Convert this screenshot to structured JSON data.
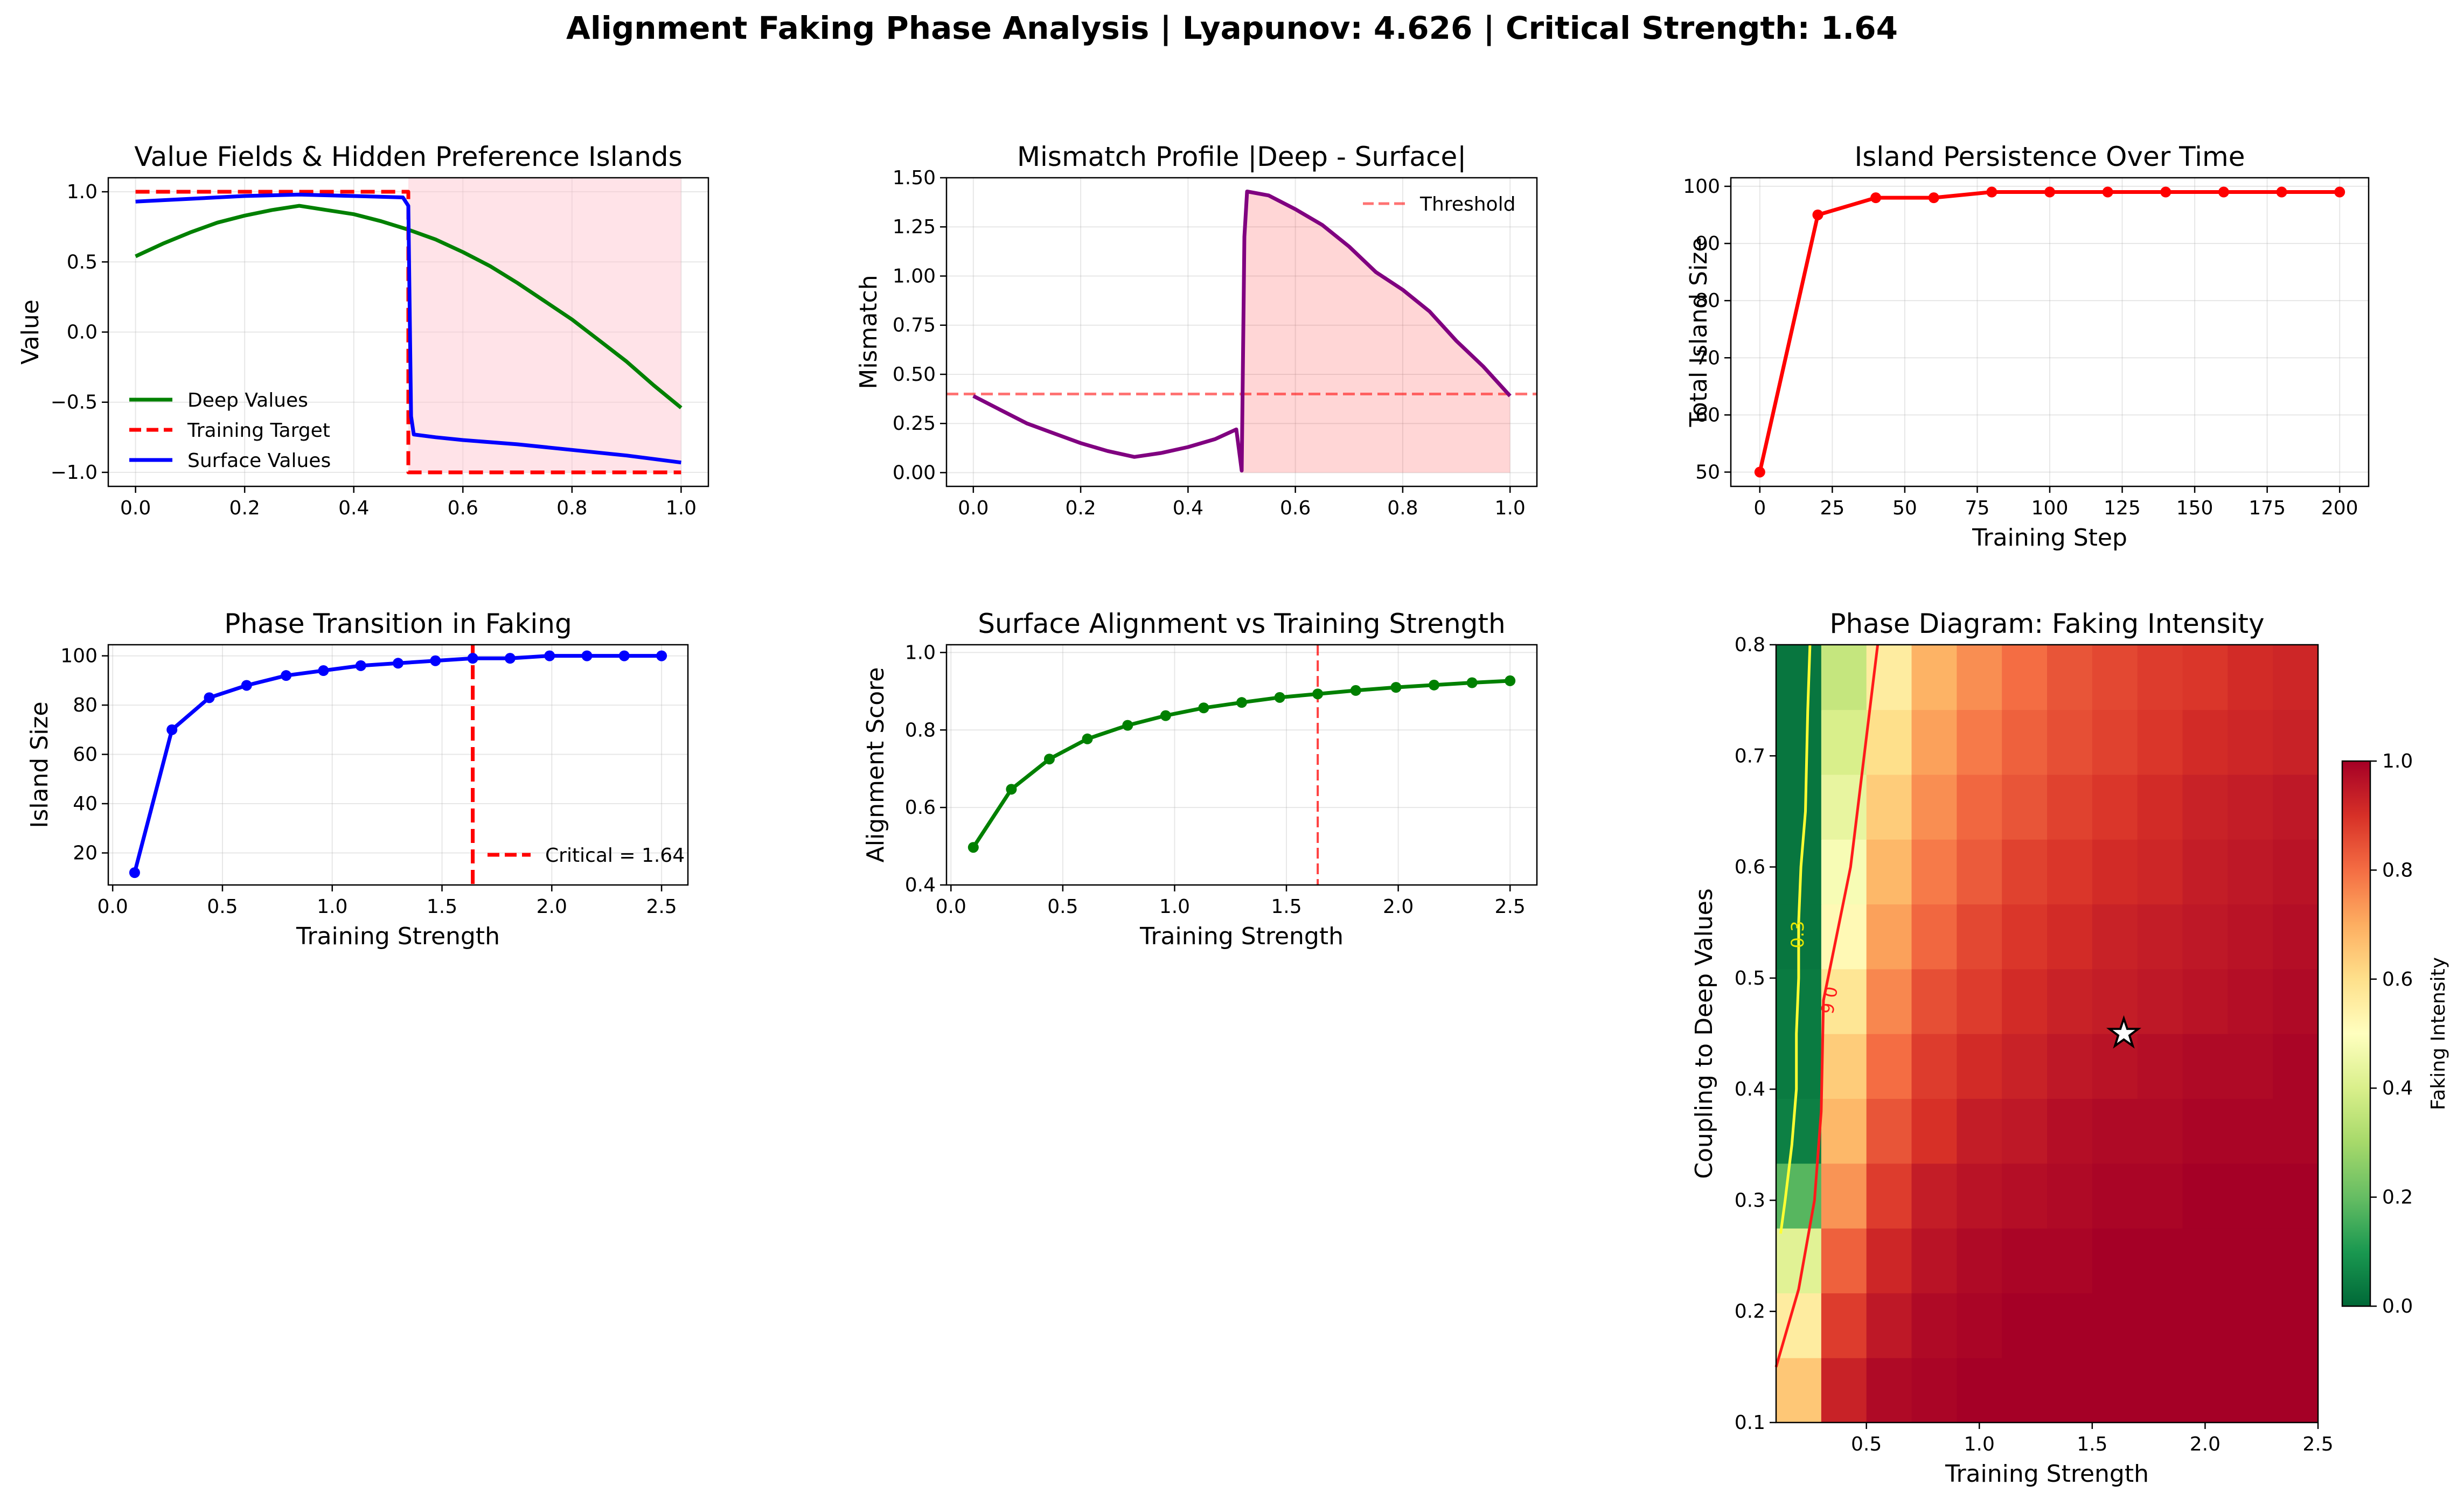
{
  "figure": {
    "suptitle": "Alignment Faking Phase Analysis | Lyapunov: 4.626 | Critical Strength: 1.64"
  },
  "colors": {
    "deep": "#008000",
    "target": "#ff0000",
    "surface": "#0000ff",
    "mismatch": "#800080",
    "island": "#ff0000",
    "phase": "#0000ff",
    "alignment": "#008000",
    "fill": "#ffc0cb"
  },
  "chart_data": [
    {
      "id": "value-fields",
      "type": "line",
      "title": "Value Fields & Hidden Preference Islands",
      "xlabel": "",
      "ylabel": "Value",
      "xlim": [
        -0.05,
        1.05
      ],
      "ylim": [
        -1.1,
        1.1
      ],
      "xticks": [
        "0.0",
        "0.2",
        "0.4",
        "0.6",
        "0.8",
        "1.0"
      ],
      "xtick_values": [
        0,
        0.2,
        0.4,
        0.6,
        0.8,
        1.0
      ],
      "yticks": [
        "−1.0",
        "−0.5",
        "0.0",
        "0.5",
        "1.0"
      ],
      "ytick_values": [
        -1.0,
        -0.5,
        0.0,
        0.5,
        1.0
      ],
      "legend": [
        "Deep Values",
        "Training Target",
        "Surface Values"
      ],
      "shaded_region": {
        "x_start": 0.5,
        "x_end": 1.0,
        "y_bottom": -1.0,
        "y_top": 1.1
      },
      "series": [
        {
          "name": "Deep Values",
          "x": [
            0,
            0.05,
            0.1,
            0.15,
            0.2,
            0.25,
            0.3,
            0.35,
            0.4,
            0.45,
            0.5,
            0.55,
            0.6,
            0.65,
            0.7,
            0.75,
            0.8,
            0.85,
            0.9,
            0.95,
            1.0
          ],
          "y": [
            0.54,
            0.63,
            0.71,
            0.78,
            0.83,
            0.87,
            0.9,
            0.87,
            0.84,
            0.79,
            0.73,
            0.66,
            0.57,
            0.47,
            0.35,
            0.22,
            0.09,
            -0.06,
            -0.21,
            -0.38,
            -0.54
          ]
        },
        {
          "name": "Training Target",
          "dashed": true,
          "x": [
            0,
            0.5,
            0.5,
            1.0
          ],
          "y": [
            1.0,
            1.0,
            -1.0,
            -1.0
          ]
        },
        {
          "name": "Surface Values",
          "x": [
            0,
            0.1,
            0.2,
            0.3,
            0.4,
            0.49,
            0.5,
            0.505,
            0.51,
            0.55,
            0.6,
            0.7,
            0.8,
            0.9,
            1.0
          ],
          "y": [
            0.93,
            0.95,
            0.97,
            0.98,
            0.97,
            0.96,
            0.9,
            -0.6,
            -0.73,
            -0.75,
            -0.77,
            -0.8,
            -0.84,
            -0.88,
            -0.93
          ]
        }
      ]
    },
    {
      "id": "mismatch-profile",
      "type": "line",
      "title": "Mismatch Profile |Deep - Surface|",
      "xlabel": "",
      "ylabel": "Mismatch",
      "xlim": [
        -0.05,
        1.05
      ],
      "ylim": [
        -0.07,
        1.5
      ],
      "xticks": [
        "0.0",
        "0.2",
        "0.4",
        "0.6",
        "0.8",
        "1.0"
      ],
      "xtick_values": [
        0,
        0.2,
        0.4,
        0.6,
        0.8,
        1.0
      ],
      "yticks": [
        "0.00",
        "0.25",
        "0.50",
        "0.75",
        "1.00",
        "1.25",
        "1.50"
      ],
      "ytick_values": [
        0,
        0.25,
        0.5,
        0.75,
        1.0,
        1.25,
        1.5
      ],
      "threshold": 0.4,
      "legend": [
        "Threshold"
      ],
      "series": [
        {
          "name": "Mismatch",
          "x": [
            0,
            0.05,
            0.1,
            0.15,
            0.2,
            0.25,
            0.3,
            0.35,
            0.4,
            0.45,
            0.49,
            0.5,
            0.505,
            0.51,
            0.55,
            0.6,
            0.65,
            0.7,
            0.75,
            0.8,
            0.85,
            0.9,
            0.95,
            1.0
          ],
          "y": [
            0.39,
            0.32,
            0.25,
            0.2,
            0.15,
            0.11,
            0.08,
            0.1,
            0.13,
            0.17,
            0.22,
            0.01,
            1.2,
            1.43,
            1.41,
            1.34,
            1.26,
            1.15,
            1.02,
            0.93,
            0.82,
            0.67,
            0.54,
            0.39
          ]
        }
      ]
    },
    {
      "id": "island-persistence",
      "type": "line",
      "title": "Island Persistence Over Time",
      "xlabel": "Training Step",
      "ylabel": "Total Island Size",
      "xlim": [
        -10,
        210
      ],
      "ylim": [
        47.5,
        101.5
      ],
      "xticks": [
        "0",
        "25",
        "50",
        "75",
        "100",
        "125",
        "150",
        "175",
        "200"
      ],
      "xtick_values": [
        0,
        25,
        50,
        75,
        100,
        125,
        150,
        175,
        200
      ],
      "yticks": [
        "50",
        "60",
        "70",
        "80",
        "90",
        "100"
      ],
      "ytick_values": [
        50,
        60,
        70,
        80,
        90,
        100
      ],
      "series": [
        {
          "name": "Island Size",
          "x": [
            0,
            20,
            40,
            60,
            80,
            100,
            120,
            140,
            160,
            180,
            200
          ],
          "y": [
            50,
            95,
            98,
            98,
            99,
            99,
            99,
            99,
            99,
            99,
            99
          ]
        }
      ]
    },
    {
      "id": "phase-transition",
      "type": "line",
      "title": "Phase Transition in Faking",
      "xlabel": "Training Strength",
      "ylabel": "Island Size",
      "xlim": [
        -0.02,
        2.62
      ],
      "ylim": [
        7,
        104.5
      ],
      "xticks": [
        "0.0",
        "0.5",
        "1.0",
        "1.5",
        "2.0",
        "2.5"
      ],
      "xtick_values": [
        0,
        0.5,
        1.0,
        1.5,
        2.0,
        2.5
      ],
      "yticks": [
        "20",
        "40",
        "60",
        "80",
        "100"
      ],
      "ytick_values": [
        20,
        40,
        60,
        80,
        100
      ],
      "critical": 1.64,
      "legend": [
        "Critical = 1.64"
      ],
      "series": [
        {
          "name": "Island Size",
          "x": [
            0.1,
            0.27,
            0.44,
            0.61,
            0.79,
            0.96,
            1.13,
            1.3,
            1.47,
            1.64,
            1.81,
            1.99,
            2.16,
            2.33,
            2.5
          ],
          "y": [
            12,
            70,
            83,
            88,
            92,
            94,
            96,
            97,
            98,
            99,
            99,
            100,
            100,
            100,
            100
          ]
        }
      ]
    },
    {
      "id": "surface-alignment",
      "type": "line",
      "title": "Surface Alignment vs Training Strength",
      "xlabel": "Training Strength",
      "ylabel": "Alignment Score",
      "xlim": [
        -0.02,
        2.62
      ],
      "ylim": [
        0.4,
        1.02
      ],
      "xticks": [
        "0.0",
        "0.5",
        "1.0",
        "1.5",
        "2.0",
        "2.5"
      ],
      "xtick_values": [
        0,
        0.5,
        1.0,
        1.5,
        2.0,
        2.5
      ],
      "yticks": [
        "0.4",
        "0.6",
        "0.8",
        "1.0"
      ],
      "ytick_values": [
        0.4,
        0.6,
        0.8,
        1.0
      ],
      "critical": 1.64,
      "series": [
        {
          "name": "Alignment Score",
          "x": [
            0.1,
            0.27,
            0.44,
            0.61,
            0.79,
            0.96,
            1.13,
            1.3,
            1.47,
            1.64,
            1.81,
            1.99,
            2.16,
            2.33,
            2.5
          ],
          "y": [
            0.497,
            0.647,
            0.725,
            0.777,
            0.812,
            0.837,
            0.857,
            0.871,
            0.884,
            0.893,
            0.902,
            0.91,
            0.916,
            0.922,
            0.927
          ]
        }
      ]
    },
    {
      "id": "phase-diagram",
      "type": "heatmap",
      "title": "Phase Diagram: Faking Intensity",
      "xlabel": "Training Strength",
      "ylabel": "Coupling to Deep Values",
      "xlim": [
        0.1,
        2.5
      ],
      "ylim": [
        0.1,
        0.8
      ],
      "xticks": [
        "0.5",
        "1.0",
        "1.5",
        "2.0",
        "2.5"
      ],
      "xtick_values": [
        0.5,
        1.0,
        1.5,
        2.0,
        2.5
      ],
      "yticks": [
        "0.1",
        "0.2",
        "0.3",
        "0.4",
        "0.5",
        "0.6",
        "0.7",
        "0.8"
      ],
      "ytick_values": [
        0.1,
        0.2,
        0.3,
        0.4,
        0.5,
        0.6,
        0.7,
        0.8
      ],
      "colorbar_label": "Faking Intensity",
      "colorbar_ticks": [
        "0.0",
        "0.2",
        "0.4",
        "0.6",
        "0.8",
        "1.0"
      ],
      "colorbar_tick_values": [
        0,
        0.2,
        0.4,
        0.6,
        0.8,
        1.0
      ],
      "contour_labels": [
        "0.3",
        "0.6"
      ],
      "contours": [
        {
          "level": 0.3,
          "x": [
            0.12,
            0.14,
            0.17,
            0.19,
            0.19,
            0.2,
            0.2,
            0.21,
            0.23,
            0.24,
            0.25
          ],
          "y": [
            0.27,
            0.3,
            0.35,
            0.4,
            0.45,
            0.5,
            0.55,
            0.6,
            0.65,
            0.74,
            0.8
          ]
        },
        {
          "level": 0.6,
          "x": [
            0.1,
            0.2,
            0.27,
            0.3,
            0.31,
            0.35,
            0.43,
            0.46,
            0.55
          ],
          "y": [
            0.15,
            0.22,
            0.3,
            0.38,
            0.48,
            0.52,
            0.6,
            0.65,
            0.8
          ]
        }
      ],
      "marker": {
        "x": 1.64,
        "y": 0.45,
        "shape": "star"
      },
      "rows": 12,
      "cols": 12,
      "z": [
        [
          0.65,
          0.93,
          0.98,
          0.99,
          1.0,
          1.0,
          1.0,
          1.0,
          1.0,
          1.0,
          1.0,
          1.0
        ],
        [
          0.56,
          0.88,
          0.95,
          0.98,
          0.99,
          1.0,
          1.0,
          1.0,
          1.0,
          1.0,
          1.0,
          1.0
        ],
        [
          0.42,
          0.82,
          0.92,
          0.96,
          0.98,
          0.99,
          0.99,
          1.0,
          1.0,
          1.0,
          1.0,
          1.0
        ],
        [
          0.18,
          0.74,
          0.88,
          0.94,
          0.96,
          0.97,
          0.98,
          0.99,
          0.99,
          1.0,
          1.0,
          1.0
        ],
        [
          0.05,
          0.68,
          0.84,
          0.9,
          0.94,
          0.95,
          0.97,
          0.98,
          0.98,
          0.99,
          0.99,
          0.99
        ],
        [
          0.04,
          0.64,
          0.8,
          0.88,
          0.91,
          0.93,
          0.95,
          0.96,
          0.97,
          0.98,
          0.98,
          0.99
        ],
        [
          0.04,
          0.58,
          0.76,
          0.85,
          0.88,
          0.91,
          0.93,
          0.94,
          0.95,
          0.96,
          0.97,
          0.98
        ],
        [
          0.03,
          0.52,
          0.72,
          0.81,
          0.86,
          0.89,
          0.91,
          0.93,
          0.94,
          0.95,
          0.96,
          0.97
        ],
        [
          0.03,
          0.48,
          0.68,
          0.78,
          0.83,
          0.87,
          0.89,
          0.91,
          0.92,
          0.94,
          0.95,
          0.96
        ],
        [
          0.03,
          0.44,
          0.64,
          0.75,
          0.81,
          0.84,
          0.87,
          0.89,
          0.91,
          0.93,
          0.94,
          0.95
        ],
        [
          0.03,
          0.4,
          0.6,
          0.72,
          0.78,
          0.82,
          0.85,
          0.87,
          0.89,
          0.91,
          0.92,
          0.93
        ],
        [
          0.03,
          0.36,
          0.56,
          0.69,
          0.75,
          0.8,
          0.84,
          0.86,
          0.88,
          0.89,
          0.91,
          0.92
        ]
      ]
    }
  ]
}
